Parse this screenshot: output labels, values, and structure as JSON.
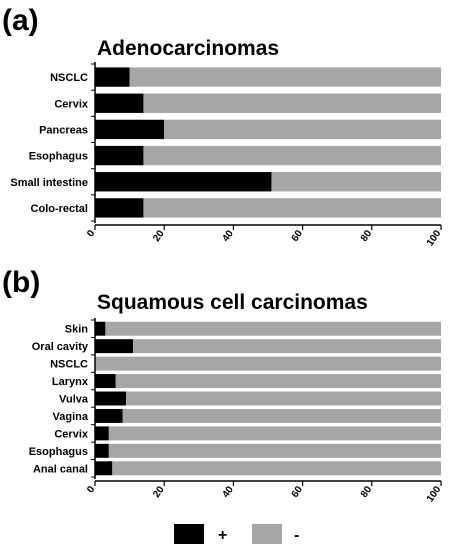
{
  "chart_data": [
    {
      "panel": "(a)",
      "type": "bar",
      "orientation": "horizontal",
      "stacked": true,
      "title": "Adenocarcinomas",
      "categories": [
        "NSCLC",
        "Cervix",
        "Pancreas",
        "Esophagus",
        "Small intestine",
        "Colo-rectal"
      ],
      "series": [
        {
          "name": "+",
          "color": "#000000",
          "values": [
            10,
            14,
            20,
            14,
            51,
            14
          ]
        },
        {
          "name": "-",
          "color": "#a6a6a6",
          "values": [
            90,
            86,
            80,
            86,
            49,
            86
          ]
        }
      ],
      "xlim": [
        0,
        100
      ],
      "xticks": [
        "0",
        "20",
        "40",
        "60",
        "80",
        "100"
      ]
    },
    {
      "panel": "(b)",
      "type": "bar",
      "orientation": "horizontal",
      "stacked": true,
      "title": "Squamous cell carcinomas",
      "categories": [
        "Skin",
        "Oral cavity",
        "NSCLC",
        "Larynx",
        "Vulva",
        "Vagina",
        "Cervix",
        "Esophagus",
        "Anal canal"
      ],
      "series": [
        {
          "name": "+",
          "color": "#000000",
          "values": [
            3,
            11,
            0,
            6,
            9,
            8,
            4,
            4,
            5
          ]
        },
        {
          "name": "-",
          "color": "#a6a6a6",
          "values": [
            97,
            89,
            100,
            94,
            91,
            92,
            96,
            96,
            95
          ]
        }
      ],
      "xlim": [
        0,
        100
      ],
      "xticks": [
        "0",
        "20",
        "40",
        "60",
        "80",
        "100"
      ]
    }
  ],
  "legend": [
    {
      "label": "+",
      "color": "#000000"
    },
    {
      "label": "-",
      "color": "#a6a6a6"
    }
  ]
}
